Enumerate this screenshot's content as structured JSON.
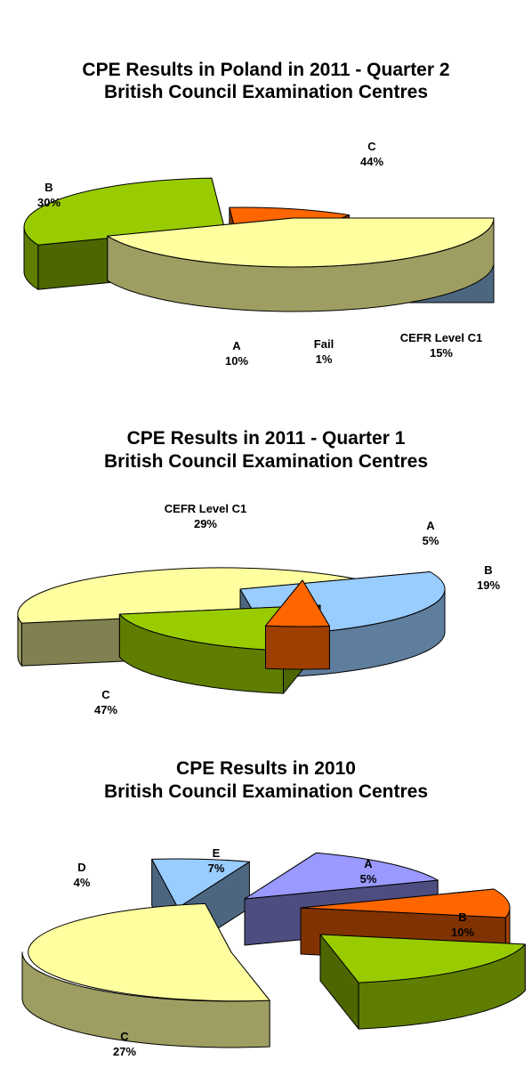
{
  "chart_data": [
    {
      "type": "pie",
      "title": "CPE Results in Poland in 2011 - Quarter 2",
      "subtitle": "British Council Examination Centres",
      "slices": [
        {
          "name": "C",
          "value": 44,
          "label": "44%",
          "color": "#ffffa0"
        },
        {
          "name": "B",
          "value": 30,
          "label": "30%",
          "color": "#99cc00"
        },
        {
          "name": "A",
          "value": 10,
          "label": "10%",
          "color": "#ff6600"
        },
        {
          "name": "Fail",
          "value": 1,
          "label": "1%",
          "color": "#9999ff"
        },
        {
          "name": "CEFR Level C1",
          "value": 15,
          "label": "15%",
          "color": "#99ccff"
        }
      ]
    },
    {
      "type": "pie",
      "title": "CPE Results in 2011 - Quarter 1",
      "subtitle": "British Council Examination Centres",
      "slices": [
        {
          "name": "CEFR Level C1",
          "value": 29,
          "label": "29%",
          "color": "#99ccff"
        },
        {
          "name": "A",
          "value": 5,
          "label": "5%",
          "color": "#ff6600"
        },
        {
          "name": "B",
          "value": 19,
          "label": "19%",
          "color": "#99cc00"
        },
        {
          "name": "C",
          "value": 47,
          "label": "47%",
          "color": "#ffffa0"
        }
      ]
    },
    {
      "type": "pie",
      "title": "CPE Results in 2010",
      "subtitle": "British Council Examination Centres",
      "slices": [
        {
          "name": "E",
          "value": 7,
          "label": "7%",
          "color": "#9999ff"
        },
        {
          "name": "A",
          "value": 5,
          "label": "5%",
          "color": "#ff6600"
        },
        {
          "name": "B",
          "value": 10,
          "label": "10%",
          "color": "#99cc00"
        },
        {
          "name": "C",
          "value": 27,
          "label": "27%",
          "color": "#ffffa0"
        },
        {
          "name": "D",
          "value": 4,
          "label": "4%",
          "color": "#99ccff"
        }
      ]
    }
  ]
}
